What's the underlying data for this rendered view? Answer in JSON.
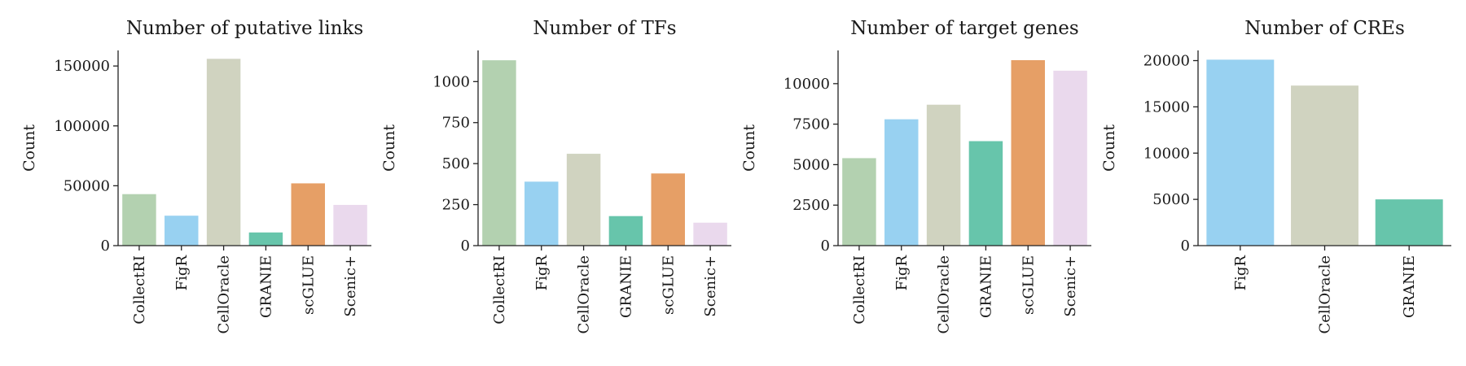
{
  "colors": {
    "CollectRI": "#b3d1b0",
    "FigR": "#98d1f1",
    "CellOracle": "#d0d3c0",
    "GRANIE": "#67c5ab",
    "scGLUE": "#e69f66",
    "Scenic+": "#ead9ed"
  },
  "chart_data": [
    {
      "type": "bar",
      "title": "Number of putative links",
      "ylabel": "Count",
      "categories": [
        "CollectRI",
        "FigR",
        "CellOracle",
        "GRANIE",
        "scGLUE",
        "Scenic+"
      ],
      "values": [
        43000,
        25000,
        156000,
        11000,
        52000,
        34000
      ],
      "yticks": [
        0,
        50000,
        100000,
        150000
      ],
      "ylim": [
        0,
        163000
      ],
      "grid": false
    },
    {
      "type": "bar",
      "title": "Number of TFs",
      "ylabel": "Count",
      "categories": [
        "CollectRI",
        "FigR",
        "CellOracle",
        "GRANIE",
        "scGLUE",
        "Scenic+"
      ],
      "values": [
        1130,
        390,
        560,
        180,
        440,
        140
      ],
      "yticks": [
        0,
        250,
        500,
        750,
        1000
      ],
      "ylim": [
        0,
        1190
      ],
      "grid": false
    },
    {
      "type": "bar",
      "title": "Number of target genes",
      "ylabel": "Count",
      "categories": [
        "CollectRI",
        "FigR",
        "CellOracle",
        "GRANIE",
        "scGLUE",
        "Scenic+"
      ],
      "values": [
        5400,
        7800,
        8700,
        6450,
        11450,
        10800
      ],
      "yticks": [
        0,
        2500,
        5000,
        7500,
        10000
      ],
      "ylim": [
        0,
        12050
      ],
      "grid": false
    },
    {
      "type": "bar",
      "title": "Number of CREs",
      "ylabel": "Count",
      "categories": [
        "FigR",
        "CellOracle",
        "GRANIE"
      ],
      "values": [
        20100,
        17300,
        5000
      ],
      "yticks": [
        0,
        5000,
        10000,
        15000,
        20000
      ],
      "ylim": [
        0,
        21100
      ],
      "grid": false
    }
  ]
}
